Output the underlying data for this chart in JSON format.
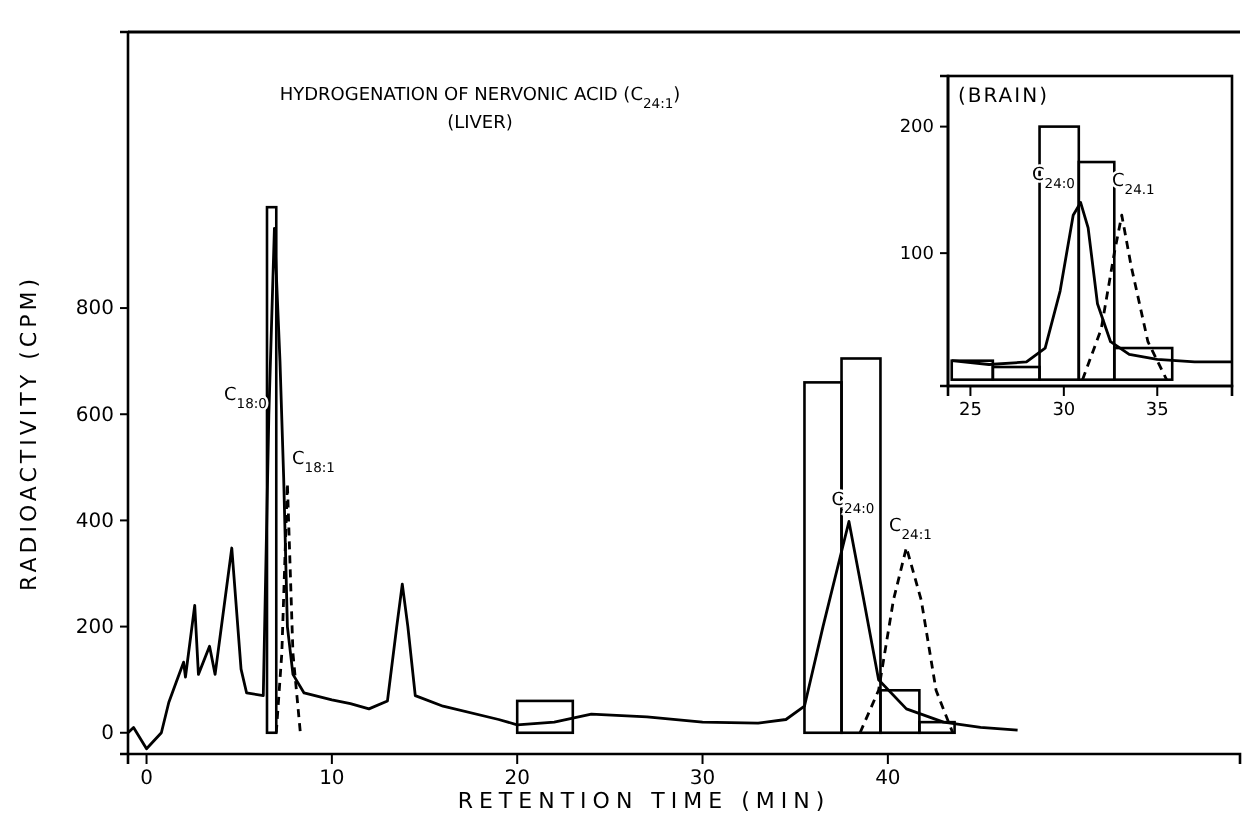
{
  "chart_data": [
    {
      "type": "line",
      "title": "HYDROGENATION OF NERVONIC ACID (C$_{24:1}$)",
      "subtitle": "(LIVER)",
      "xlabel": "RETENTION TIME (MIN)",
      "ylabel": "RADIOACTIVITY (CPM)",
      "xlim": [
        -1,
        59
      ],
      "ylim": [
        -40,
        1320
      ],
      "xticks": [
        0,
        10,
        20,
        30,
        40
      ],
      "yticks": [
        0,
        200,
        400,
        600,
        800
      ],
      "grid": false,
      "series": [
        {
          "type": "histogram",
          "color": "#000000",
          "bins": [
            6.5,
            7.0,
            20,
            23,
            35.5,
            37.5,
            39.6,
            41.7,
            43.6
          ],
          "values": [
            990,
            0,
            60,
            0,
            660,
            705,
            80,
            20
          ]
        },
        {
          "color": "#000000",
          "line_style": "solid",
          "x": [
            -1.0,
            -0.7,
            0,
            0.8,
            1.2,
            1.6,
            2.0,
            2.1,
            2.6,
            2.8,
            3.4,
            3.7,
            4.6,
            5.1,
            5.4,
            6.3,
            6.6,
            6.9,
            7.2,
            7.4,
            7.6,
            7.9,
            8.5,
            10,
            11,
            12,
            13,
            13.5,
            13.8,
            14.1,
            14.5,
            16,
            19,
            20,
            22,
            24,
            27,
            30,
            33,
            34.5,
            35.5,
            36.5,
            37.9,
            38.7,
            39.5,
            41,
            43,
            45,
            47
          ],
          "values": [
            0,
            10,
            -30,
            0,
            57,
            95,
            133,
            105,
            240,
            110,
            163,
            110,
            348,
            120,
            75,
            70,
            600,
            950,
            700,
            480,
            200,
            110,
            75,
            62,
            55,
            45,
            60,
            200,
            280,
            200,
            70,
            50,
            25,
            15,
            20,
            35,
            30,
            20,
            18,
            25,
            50,
            200,
            398,
            250,
            100,
            45,
            20,
            10,
            5
          ]
        },
        {
          "color": "#000000",
          "line_style": "dashed",
          "x": [
            7.0,
            7.3,
            7.6,
            7.9,
            8.3
          ],
          "values": [
            0,
            150,
            470,
            150,
            0
          ]
        },
        {
          "color": "#000000",
          "line_style": "dashed",
          "x": [
            38.5,
            39.5,
            40.3,
            41,
            41.8,
            42.6,
            43.5
          ],
          "values": [
            0,
            80,
            250,
            349,
            250,
            80,
            0
          ]
        }
      ],
      "annotations": [
        "C$_{18:0}$",
        "C$_{18:1}$",
        {
          "text": "C$_{24:0}$",
          "x": 37.9,
          "y": 398
        },
        {
          "text": "C$_{24:1}$",
          "x": 41,
          "y": 349
        }
      ]
    },
    {
      "type": "line",
      "title": "(BRAIN)",
      "xlim": [
        23.8,
        39
      ],
      "ylim": [
        -5,
        240
      ],
      "xticks": [
        25,
        30,
        35
      ],
      "yticks": [
        100,
        200
      ],
      "grid": false,
      "series": [
        {
          "type": "histogram",
          "color": "#000000",
          "bins": [
            24,
            26.2,
            28.7,
            30.8,
            32.7,
            35.8
          ],
          "values": [
            15,
            10,
            200,
            172,
            25
          ]
        },
        {
          "color": "#000000",
          "line_style": "solid",
          "x": [
            24,
            26,
            28,
            29,
            29.8,
            30.5,
            30.9,
            31.3,
            31.8,
            32.5,
            33.5,
            35,
            37,
            39
          ],
          "values": [
            15,
            12,
            14,
            25,
            70,
            130,
            140,
            120,
            60,
            30,
            20,
            16,
            14,
            14
          ]
        },
        {
          "color": "#000000",
          "line_style": "dashed",
          "x": [
            31,
            32,
            32.7,
            33.1,
            33.6,
            34.5,
            35.5
          ],
          "values": [
            0,
            40,
            100,
            130,
            90,
            30,
            0
          ]
        }
      ],
      "annotations": [
        "C$_{24:0}$",
        "C$_{24.1}$"
      ]
    }
  ]
}
